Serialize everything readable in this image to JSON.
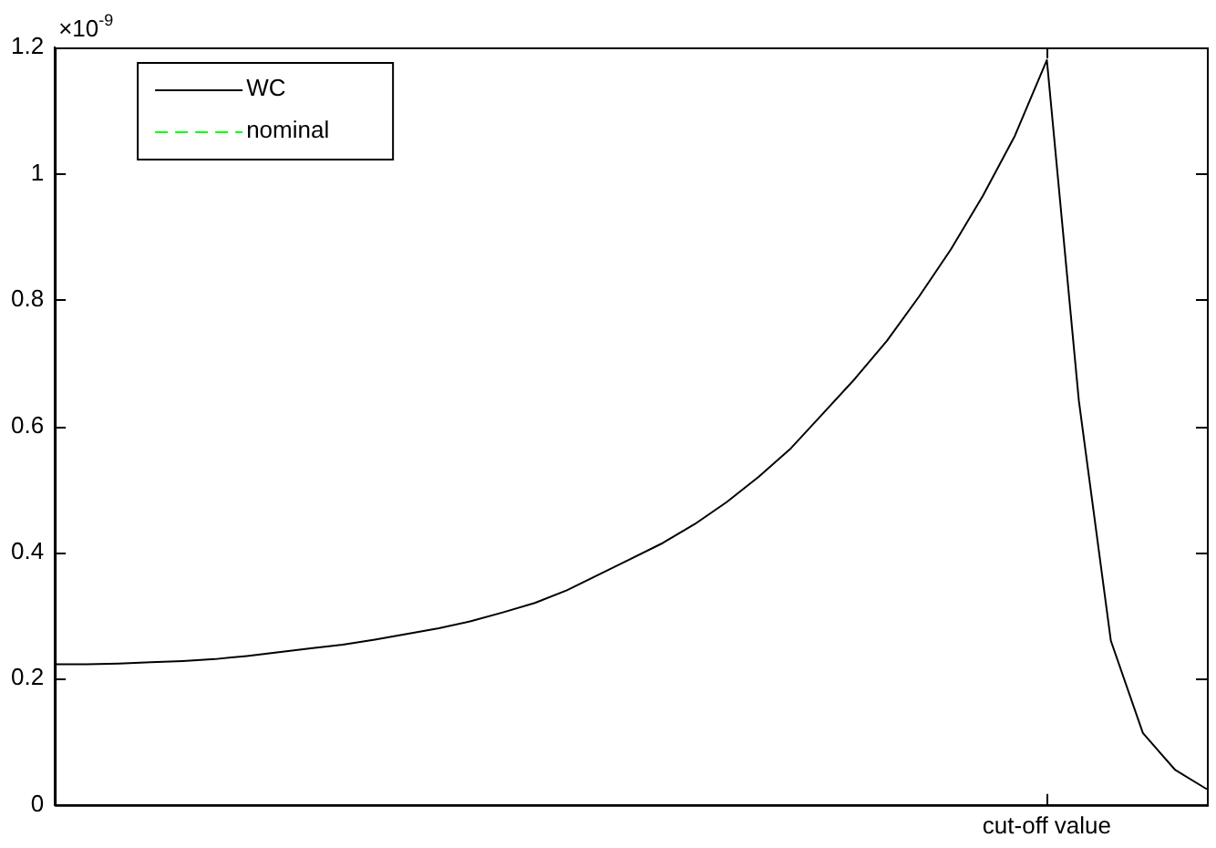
{
  "chart_data": {
    "type": "line",
    "categories": [
      null,
      null,
      null,
      null,
      null,
      null,
      null,
      null,
      null,
      null,
      null,
      null,
      null,
      null,
      null,
      null,
      null,
      null,
      null,
      null,
      null,
      null,
      null,
      null,
      null,
      null,
      null,
      null,
      null,
      null,
      null,
      "cut-off value",
      null,
      null,
      null,
      null,
      null
    ],
    "series": [
      {
        "name": "WC",
        "color": "#000000",
        "line_style": "solid",
        "values": [
          0.223,
          0.223,
          0.224,
          0.226,
          0.228,
          0.231,
          0.236,
          0.242,
          0.248,
          0.254,
          0.262,
          0.271,
          0.28,
          0.291,
          0.305,
          0.32,
          0.34,
          0.365,
          0.39,
          0.415,
          0.445,
          0.48,
          0.52,
          0.565,
          0.62,
          0.675,
          0.735,
          0.805,
          0.88,
          0.965,
          1.06,
          1.18,
          0.64,
          0.26,
          0.114,
          0.056,
          0.025
        ]
      },
      {
        "name": "nominal",
        "color": "#00ff00",
        "line_style": "dashed",
        "values": [
          null,
          null,
          null,
          null,
          null,
          null,
          null,
          null,
          null,
          null,
          null,
          null,
          null,
          null,
          null,
          null,
          null,
          null,
          null,
          null,
          null,
          null,
          null,
          null,
          null,
          null,
          null,
          null,
          null,
          null,
          null,
          null,
          null,
          null,
          null,
          null,
          null
        ]
      }
    ],
    "ylim": [
      0,
      1.2
    ],
    "yticks": [
      0,
      0.2,
      0.4,
      0.6,
      0.8,
      1,
      1.2
    ],
    "annotations": [
      "×10$^{-9}$"
    ],
    "legend": "top left",
    "grid": false,
    "marker": "none"
  }
}
